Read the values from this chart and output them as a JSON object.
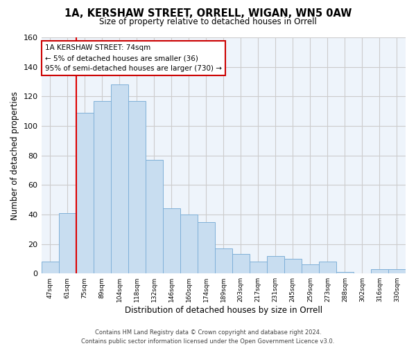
{
  "title": "1A, KERSHAW STREET, ORRELL, WIGAN, WN5 0AW",
  "subtitle": "Size of property relative to detached houses in Orrell",
  "xlabel": "Distribution of detached houses by size in Orrell",
  "ylabel": "Number of detached properties",
  "categories": [
    "47sqm",
    "61sqm",
    "75sqm",
    "89sqm",
    "104sqm",
    "118sqm",
    "132sqm",
    "146sqm",
    "160sqm",
    "174sqm",
    "189sqm",
    "203sqm",
    "217sqm",
    "231sqm",
    "245sqm",
    "259sqm",
    "273sqm",
    "288sqm",
    "302sqm",
    "316sqm",
    "330sqm"
  ],
  "values": [
    8,
    41,
    109,
    117,
    128,
    117,
    77,
    44,
    40,
    35,
    17,
    13,
    8,
    12,
    10,
    6,
    8,
    1,
    0,
    3,
    3
  ],
  "bar_fill_color": "#c8ddf0",
  "bar_edge_color": "#7fb0d8",
  "red_line_index": 2,
  "red_line_color": "#dd0000",
  "annotation_box_text": "1A KERSHAW STREET: 74sqm\n← 5% of detached houses are smaller (36)\n95% of semi-detached houses are larger (730) →",
  "annotation_box_edge_color": "#cc0000",
  "annotation_box_facecolor": "#ffffff",
  "ylim": [
    0,
    160
  ],
  "yticks": [
    0,
    20,
    40,
    60,
    80,
    100,
    120,
    140,
    160
  ],
  "grid_color": "#cccccc",
  "background_color": "#ffffff",
  "plot_bg_color": "#eef4fb",
  "footer_line1": "Contains HM Land Registry data © Crown copyright and database right 2024.",
  "footer_line2": "Contains public sector information licensed under the Open Government Licence v3.0.",
  "title_fontsize": 10.5,
  "subtitle_fontsize": 8.5,
  "xlabel_fontsize": 8.5,
  "ylabel_fontsize": 8.5,
  "annotation_fontsize": 7.5,
  "footer_fontsize": 6.0
}
